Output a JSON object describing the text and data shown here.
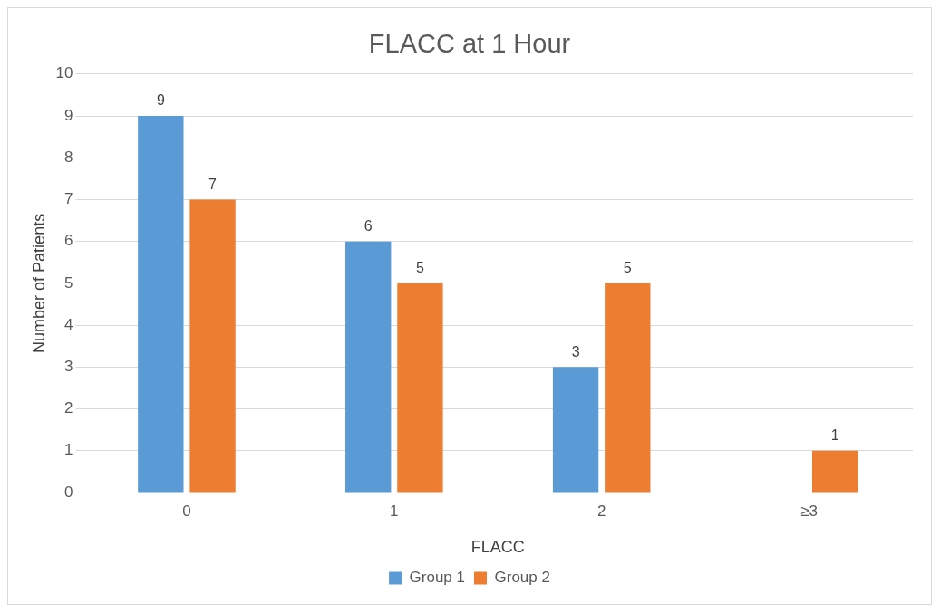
{
  "chart_data": {
    "type": "bar",
    "title": "FLACC at 1 Hour",
    "xlabel": "FLACC",
    "ylabel": "Number of Patients",
    "categories": [
      "0",
      "1",
      "2",
      "≥3"
    ],
    "series": [
      {
        "name": "Group 1",
        "color": "#5b9bd5",
        "values": [
          9,
          6,
          3,
          null
        ]
      },
      {
        "name": "Group 2",
        "color": "#ed7d31",
        "values": [
          7,
          5,
          5,
          1
        ]
      }
    ],
    "ylim": [
      0,
      10
    ],
    "yticks": [
      0,
      1,
      2,
      3,
      4,
      5,
      6,
      7,
      8,
      9,
      10
    ],
    "grid": "y",
    "legend": "bottom",
    "data_labels": true
  }
}
